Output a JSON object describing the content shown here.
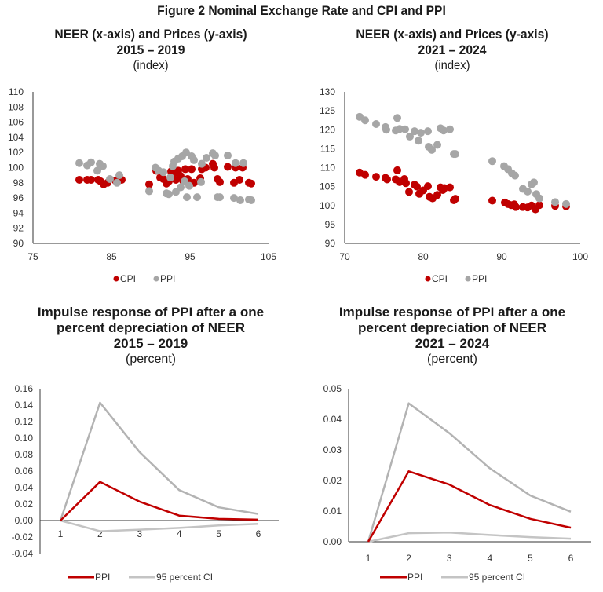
{
  "figure_title": "Figure 2 Nominal Exchange Rate and CPI and PPI",
  "colors": {
    "cpi": "#c00000",
    "ppi": "#a6a6a6",
    "ppi_line": "#c00000",
    "ci_line": "#bfbfbf",
    "axis": "#333333"
  },
  "chart_data": [
    {
      "type": "scatter",
      "title": "NEER (x-axis) and Prices (y-axis)",
      "subtitle": "2015 – 2019",
      "units": "(index)",
      "xlabel": "NEER",
      "ylabel": "Prices",
      "xlim": [
        75,
        105
      ],
      "ylim": [
        90,
        110
      ],
      "xticks": [
        "75",
        "85",
        "95",
        "105"
      ],
      "yticks": [
        "90",
        "92",
        "94",
        "96",
        "98",
        "100",
        "102",
        "104",
        "106",
        "108",
        "110"
      ],
      "legend": {
        "position": "bottom",
        "entries": [
          "CPI",
          "PPI"
        ]
      },
      "series": [
        {
          "name": "CPI",
          "points": [
            [
              80.9,
              98.4
            ],
            [
              81.9,
              98.4
            ],
            [
              82.4,
              98.4
            ],
            [
              83.3,
              98.4
            ],
            [
              83.6,
              98.2
            ],
            [
              84.0,
              97.8
            ],
            [
              84.5,
              98.0
            ],
            [
              85.5,
              98.3
            ],
            [
              86.3,
              98.4
            ],
            [
              89.8,
              97.8
            ],
            [
              90.7,
              99.6
            ],
            [
              91.2,
              98.7
            ],
            [
              91.6,
              98.5
            ],
            [
              92.0,
              97.9
            ],
            [
              92.3,
              98.2
            ],
            [
              92.6,
              99.5
            ],
            [
              92.9,
              99.2
            ],
            [
              93.2,
              98.4
            ],
            [
              93.5,
              99.6
            ],
            [
              93.8,
              98.9
            ],
            [
              94.1,
              98.3
            ],
            [
              94.4,
              99.8
            ],
            [
              94.7,
              98.5
            ],
            [
              95.2,
              99.8
            ],
            [
              95.5,
              98.0
            ],
            [
              96.3,
              98.6
            ],
            [
              96.5,
              99.8
            ],
            [
              97.0,
              100.0
            ],
            [
              97.9,
              100.5
            ],
            [
              98.1,
              100.0
            ],
            [
              98.5,
              98.5
            ],
            [
              98.8,
              98.1
            ],
            [
              99.8,
              100.1
            ],
            [
              100.6,
              98.0
            ],
            [
              100.8,
              100.0
            ],
            [
              101.3,
              98.4
            ],
            [
              101.7,
              100.0
            ],
            [
              102.5,
              98.0
            ],
            [
              102.8,
              97.9
            ]
          ]
        },
        {
          "name": "PPI",
          "points": [
            [
              80.9,
              100.6
            ],
            [
              81.9,
              100.3
            ],
            [
              82.4,
              100.7
            ],
            [
              83.2,
              99.6
            ],
            [
              83.5,
              100.5
            ],
            [
              83.9,
              100.2
            ],
            [
              84.8,
              98.5
            ],
            [
              85.7,
              98.0
            ],
            [
              86.0,
              99.0
            ],
            [
              89.8,
              96.9
            ],
            [
              90.6,
              100.0
            ],
            [
              91.0,
              99.6
            ],
            [
              91.6,
              99.4
            ],
            [
              92.0,
              96.6
            ],
            [
              92.3,
              96.5
            ],
            [
              92.5,
              98.7
            ],
            [
              92.8,
              100.2
            ],
            [
              93.0,
              100.8
            ],
            [
              93.2,
              96.8
            ],
            [
              93.5,
              101.2
            ],
            [
              93.8,
              97.4
            ],
            [
              94.0,
              101.5
            ],
            [
              94.3,
              98.2
            ],
            [
              94.5,
              102.0
            ],
            [
              94.6,
              96.1
            ],
            [
              94.9,
              97.6
            ],
            [
              95.2,
              101.5
            ],
            [
              95.5,
              101.0
            ],
            [
              95.9,
              96.1
            ],
            [
              96.4,
              98.1
            ],
            [
              96.5,
              100.5
            ],
            [
              97.1,
              101.3
            ],
            [
              97.9,
              101.9
            ],
            [
              98.2,
              101.6
            ],
            [
              98.5,
              96.1
            ],
            [
              98.8,
              96.1
            ],
            [
              99.8,
              101.6
            ],
            [
              100.6,
              96.0
            ],
            [
              100.8,
              100.6
            ],
            [
              101.4,
              95.7
            ],
            [
              101.8,
              100.6
            ],
            [
              102.5,
              95.8
            ],
            [
              102.8,
              95.7
            ]
          ]
        }
      ]
    },
    {
      "type": "scatter",
      "title": "NEER (x-axis) and Prices (y-axis)",
      "subtitle": "2021 – 2024",
      "units": "(index)",
      "xlabel": "NEER",
      "ylabel": "Prices",
      "xlim": [
        70,
        100
      ],
      "ylim": [
        90,
        130
      ],
      "xticks": [
        "70",
        "80",
        "90",
        "100"
      ],
      "yticks": [
        "90",
        "95",
        "100",
        "105",
        "110",
        "115",
        "120",
        "125",
        "130"
      ],
      "legend": {
        "position": "bottom",
        "entries": [
          "CPI",
          "PPI"
        ]
      },
      "series": [
        {
          "name": "CPI",
          "points": [
            [
              71.9,
              108.7
            ],
            [
              72.6,
              108.1
            ],
            [
              74.0,
              107.6
            ],
            [
              75.2,
              107.3
            ],
            [
              75.4,
              106.9
            ],
            [
              76.5,
              106.9
            ],
            [
              76.7,
              109.3
            ],
            [
              77.0,
              106.2
            ],
            [
              77.6,
              107.0
            ],
            [
              77.8,
              105.9
            ],
            [
              78.2,
              103.6
            ],
            [
              78.9,
              105.5
            ],
            [
              79.2,
              105.0
            ],
            [
              79.5,
              103.1
            ],
            [
              80.0,
              104.0
            ],
            [
              80.6,
              105.1
            ],
            [
              80.8,
              102.3
            ],
            [
              81.2,
              101.9
            ],
            [
              81.8,
              102.8
            ],
            [
              82.2,
              104.8
            ],
            [
              82.5,
              104.1
            ],
            [
              82.7,
              104.6
            ],
            [
              83.4,
              104.8
            ],
            [
              83.9,
              101.4
            ],
            [
              84.1,
              101.8
            ],
            [
              88.8,
              101.3
            ],
            [
              90.4,
              100.8
            ],
            [
              90.8,
              100.4
            ],
            [
              91.2,
              100.1
            ],
            [
              91.6,
              100.3
            ],
            [
              91.8,
              99.6
            ],
            [
              92.7,
              99.6
            ],
            [
              93.3,
              99.5
            ],
            [
              93.8,
              100.0
            ],
            [
              94.3,
              99.0
            ],
            [
              94.8,
              100.1
            ],
            [
              96.8,
              99.9
            ],
            [
              98.2,
              99.8
            ]
          ]
        },
        {
          "name": "PPI",
          "points": [
            [
              71.9,
              123.4
            ],
            [
              72.6,
              122.5
            ],
            [
              74.0,
              121.5
            ],
            [
              75.2,
              120.7
            ],
            [
              75.3,
              120.0
            ],
            [
              76.5,
              119.8
            ],
            [
              76.7,
              123.1
            ],
            [
              77.0,
              120.2
            ],
            [
              77.7,
              120.1
            ],
            [
              78.3,
              118.2
            ],
            [
              78.9,
              119.6
            ],
            [
              79.4,
              117.1
            ],
            [
              79.7,
              119.2
            ],
            [
              80.6,
              119.6
            ],
            [
              80.7,
              115.5
            ],
            [
              81.1,
              114.7
            ],
            [
              81.8,
              116.0
            ],
            [
              82.2,
              120.4
            ],
            [
              82.6,
              119.8
            ],
            [
              83.4,
              120.1
            ],
            [
              83.9,
              113.6
            ],
            [
              84.1,
              113.6
            ],
            [
              88.8,
              111.7
            ],
            [
              90.3,
              110.4
            ],
            [
              90.8,
              109.6
            ],
            [
              91.3,
              108.5
            ],
            [
              91.7,
              107.9
            ],
            [
              92.7,
              104.4
            ],
            [
              93.3,
              103.7
            ],
            [
              93.8,
              105.6
            ],
            [
              94.1,
              106.1
            ],
            [
              94.4,
              103.0
            ],
            [
              94.8,
              101.9
            ],
            [
              96.8,
              100.9
            ],
            [
              98.2,
              100.4
            ]
          ]
        }
      ]
    },
    {
      "type": "line",
      "title": "Impulse response of PPI after a one percent depreciation of NEER",
      "title_lines": [
        "Impulse response of PPI after a one",
        "percent depreciation of NEER"
      ],
      "subtitle": "2015 – 2019",
      "units": "(percent)",
      "categories": [
        "1",
        "2",
        "3",
        "4",
        "5",
        "6"
      ],
      "ylim": [
        -0.04,
        0.16
      ],
      "yticks": [
        "-0.04",
        "-0.02",
        "0.00",
        "0.02",
        "0.04",
        "0.06",
        "0.08",
        "0.10",
        "0.12",
        "0.14",
        "0.16"
      ],
      "legend": {
        "position": "bottom",
        "entries": [
          "PPI",
          "95 percent CI"
        ]
      },
      "series": [
        {
          "name": "PPI",
          "values": [
            0.0,
            0.047,
            0.023,
            0.006,
            0.002,
            0.001
          ]
        },
        {
          "name": "95 percent CI upper",
          "values": [
            0.0,
            0.143,
            0.083,
            0.037,
            0.016,
            0.008
          ]
        },
        {
          "name": "95 percent CI lower",
          "values": [
            0.0,
            -0.013,
            -0.011,
            -0.009,
            -0.006,
            -0.004
          ]
        }
      ]
    },
    {
      "type": "line",
      "title": "Impulse response of PPI after a one percent depreciation of NEER",
      "title_lines": [
        "Impulse response of PPI after a one",
        "percent depreciation of NEER"
      ],
      "subtitle": "2021 – 2024",
      "units": "(percent)",
      "categories": [
        "1",
        "2",
        "3",
        "4",
        "5",
        "6"
      ],
      "ylim": [
        0.0,
        0.05
      ],
      "yticks": [
        "0.00",
        "0.01",
        "0.02",
        "0.03",
        "0.04",
        "0.05"
      ],
      "legend": {
        "position": "bottom",
        "entries": [
          "PPI",
          "95 percent CI"
        ]
      },
      "series": [
        {
          "name": "PPI",
          "values": [
            0.0,
            0.023,
            0.0187,
            0.012,
            0.0075,
            0.0046
          ]
        },
        {
          "name": "95 percent CI upper",
          "values": [
            0.0,
            0.0452,
            0.0355,
            0.024,
            0.0151,
            0.0098
          ]
        },
        {
          "name": "95 percent CI lower",
          "values": [
            0.0,
            0.0028,
            0.003,
            0.0022,
            0.0015,
            0.001
          ]
        }
      ]
    }
  ]
}
